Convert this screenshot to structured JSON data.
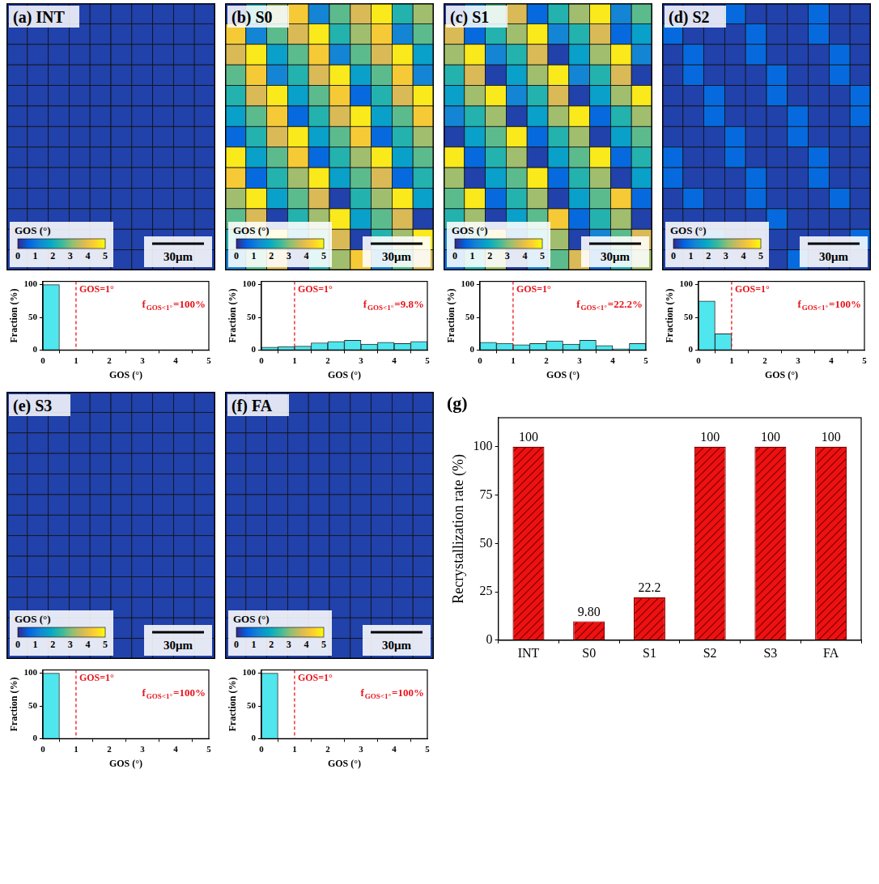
{
  "colorbar": {
    "title": "GOS (°)",
    "range": [
      0,
      5
    ],
    "ticks": [
      0,
      1,
      2,
      3,
      4,
      5
    ]
  },
  "scale_bar": "30μm",
  "panels": [
    {
      "letter": "(a)",
      "name": "INT",
      "chart_data": {
        "type": "bar",
        "bins": [
          0,
          0.5,
          1,
          1.5,
          2,
          2.5,
          3,
          3.5,
          4,
          4.5,
          5
        ],
        "values": [
          100,
          0,
          0,
          0,
          0,
          0,
          0,
          0,
          0,
          0
        ],
        "color": "#4fe6ee",
        "x_label": "GOS (°)",
        "y_label": "Fraction (%)",
        "xlim": [
          0,
          5
        ],
        "xticks": [
          0,
          1,
          2,
          3,
          4,
          5
        ],
        "ylim": [
          0,
          105
        ],
        "yticks": [
          0,
          50,
          100
        ],
        "grid": false,
        "vline": {
          "value": 1,
          "label": "GOS=1°"
        },
        "annotation": {
          "base": "f",
          "subscript": "GOS<1°",
          "text": "=100%"
        }
      }
    },
    {
      "letter": "(b)",
      "name": "S0",
      "chart_data": {
        "type": "bar",
        "bins": [
          0,
          0.5,
          1,
          1.5,
          2,
          2.5,
          3,
          3.5,
          4,
          4.5,
          5
        ],
        "values": [
          4.5,
          5.3,
          6,
          11,
          13,
          15,
          9,
          12,
          10,
          13
        ],
        "color": "#4fe6ee",
        "x_label": "GOS (°)",
        "y_label": "Fraction (%)",
        "xlim": [
          0,
          5
        ],
        "xticks": [
          0,
          1,
          2,
          3,
          4,
          5
        ],
        "ylim": [
          0,
          105
        ],
        "yticks": [
          0,
          50,
          100
        ],
        "grid": false,
        "vline": {
          "value": 1,
          "label": "GOS=1°"
        },
        "annotation": {
          "base": "f",
          "subscript": "GOS<1°",
          "text": "=9.8%"
        }
      }
    },
    {
      "letter": "(c)",
      "name": "S1",
      "chart_data": {
        "type": "bar",
        "bins": [
          0,
          0.5,
          1,
          1.5,
          2,
          2.5,
          3,
          3.5,
          4,
          4.5,
          5
        ],
        "values": [
          12,
          10.2,
          8,
          10,
          14,
          9,
          15,
          7,
          2,
          10
        ],
        "color": "#4fe6ee",
        "x_label": "GOS (°)",
        "y_label": "Fraction (%)",
        "xlim": [
          0,
          5
        ],
        "xticks": [
          0,
          1,
          2,
          3,
          4,
          5
        ],
        "ylim": [
          0,
          105
        ],
        "yticks": [
          0,
          50,
          100
        ],
        "grid": false,
        "vline": {
          "value": 1,
          "label": "GOS=1°"
        },
        "annotation": {
          "base": "f",
          "subscript": "GOS<1°",
          "text": "=22.2%"
        }
      }
    },
    {
      "letter": "(d)",
      "name": "S2",
      "chart_data": {
        "type": "bar",
        "bins": [
          0,
          0.5,
          1,
          1.5,
          2,
          2.5,
          3,
          3.5,
          4,
          4.5,
          5
        ],
        "values": [
          75,
          25,
          0,
          0,
          0,
          0,
          0,
          0,
          0,
          0
        ],
        "color": "#4fe6ee",
        "x_label": "GOS (°)",
        "y_label": "Fraction (%)",
        "xlim": [
          0,
          5
        ],
        "xticks": [
          0,
          1,
          2,
          3,
          4,
          5
        ],
        "ylim": [
          0,
          105
        ],
        "yticks": [
          0,
          50,
          100
        ],
        "grid": false,
        "vline": {
          "value": 1,
          "label": "GOS=1°"
        },
        "annotation": {
          "base": "f",
          "subscript": "GOS<1°",
          "text": "=100%"
        }
      }
    },
    {
      "letter": "(e)",
      "name": "S3",
      "chart_data": {
        "type": "bar",
        "bins": [
          0,
          0.5,
          1,
          1.5,
          2,
          2.5,
          3,
          3.5,
          4,
          4.5,
          5
        ],
        "values": [
          100,
          0,
          0,
          0,
          0,
          0,
          0,
          0,
          0,
          0
        ],
        "color": "#4fe6ee",
        "x_label": "GOS (°)",
        "y_label": "Fraction (%)",
        "xlim": [
          0,
          5
        ],
        "xticks": [
          0,
          1,
          2,
          3,
          4,
          5
        ],
        "ylim": [
          0,
          105
        ],
        "yticks": [
          0,
          50,
          100
        ],
        "grid": false,
        "vline": {
          "value": 1,
          "label": "GOS=1°"
        },
        "annotation": {
          "base": "f",
          "subscript": "GOS<1°",
          "text": "=100%"
        }
      }
    },
    {
      "letter": "(f)",
      "name": "FA",
      "chart_data": {
        "type": "bar",
        "bins": [
          0,
          0.5,
          1,
          1.5,
          2,
          2.5,
          3,
          3.5,
          4,
          4.5,
          5
        ],
        "values": [
          100,
          0,
          0,
          0,
          0,
          0,
          0,
          0,
          0,
          0
        ],
        "color": "#4fe6ee",
        "x_label": "GOS (°)",
        "y_label": "Fraction (%)",
        "xlim": [
          0,
          5
        ],
        "xticks": [
          0,
          1,
          2,
          3,
          4,
          5
        ],
        "ylim": [
          0,
          105
        ],
        "yticks": [
          0,
          50,
          100
        ],
        "grid": false,
        "vline": {
          "value": 1,
          "label": "GOS=1°"
        },
        "annotation": {
          "base": "f",
          "subscript": "GOS<1°",
          "text": "=100%"
        }
      }
    }
  ],
  "chart_data": {
    "type": "bar",
    "panel": "(g)",
    "y_label": "Recrystallization rate (%)",
    "categories": [
      "INT",
      "S0",
      "S1",
      "S2",
      "S3",
      "FA"
    ],
    "values": [
      100,
      9.8,
      22.2,
      100,
      100,
      100
    ],
    "value_labels": [
      "100",
      "9.80",
      "22.2",
      "100",
      "100",
      "100"
    ],
    "data_labels": true,
    "color": "#ee1111",
    "ylim": [
      0,
      115
    ],
    "yticks": [
      0,
      25,
      50,
      75,
      100
    ],
    "grid": false
  }
}
